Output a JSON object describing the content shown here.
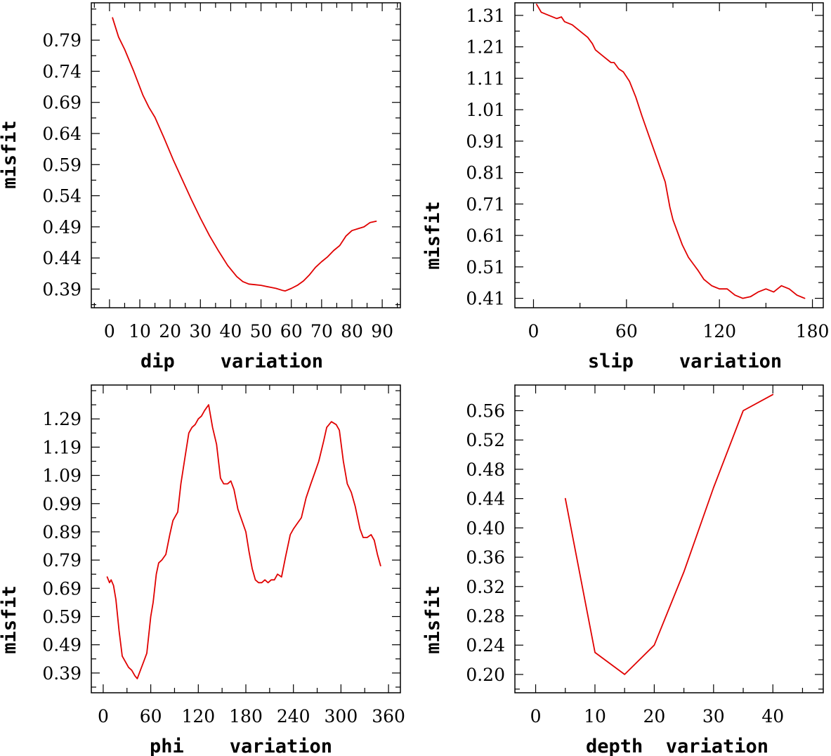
{
  "chart_data": [
    {
      "id": "dip",
      "type": "line",
      "title": "",
      "xlabel": "dip    variation",
      "ylabel": "misfit",
      "xlim": [
        -6,
        96
      ],
      "ylim": [
        0.36,
        0.85
      ],
      "x_ticks": [
        0,
        10,
        20,
        30,
        40,
        50,
        60,
        70,
        80,
        90
      ],
      "x_tick_labels": [
        "0",
        "10",
        "20",
        "30",
        "40",
        "50",
        "60",
        "70",
        "80",
        "90"
      ],
      "y_ticks": [
        0.39,
        0.44,
        0.49,
        0.54,
        0.59,
        0.64,
        0.69,
        0.74,
        0.79
      ],
      "y_tick_labels": [
        "0.39",
        "0.44",
        "0.49",
        "0.54",
        "0.59",
        "0.64",
        "0.69",
        "0.74",
        "0.79"
      ],
      "grid": false,
      "color": "#e00000",
      "series": [
        {
          "x": [
            1,
            3,
            5,
            8,
            11,
            13,
            15,
            18,
            21,
            24,
            27,
            30,
            33,
            36,
            39,
            42,
            44,
            46,
            48,
            50,
            53,
            55,
            57,
            58,
            60,
            62,
            64,
            66,
            68,
            70,
            72,
            74,
            76,
            78,
            80,
            82,
            84,
            86,
            88
          ],
          "y": [
            0.826,
            0.795,
            0.775,
            0.74,
            0.702,
            0.682,
            0.666,
            0.633,
            0.598,
            0.566,
            0.534,
            0.504,
            0.476,
            0.451,
            0.428,
            0.41,
            0.402,
            0.398,
            0.397,
            0.396,
            0.393,
            0.391,
            0.388,
            0.387,
            0.391,
            0.396,
            0.403,
            0.413,
            0.425,
            0.434,
            0.442,
            0.452,
            0.46,
            0.475,
            0.484,
            0.487,
            0.49,
            0.497,
            0.499
          ]
        }
      ]
    },
    {
      "id": "slip",
      "type": "line",
      "title": "",
      "xlabel": "slip    variation",
      "ylabel": "misfit",
      "xlim": [
        -12,
        187
      ],
      "ylim": [
        0.38,
        1.35
      ],
      "x_ticks": [
        0,
        60,
        120,
        180
      ],
      "x_tick_labels": [
        "0",
        "60",
        "120",
        "180"
      ],
      "y_ticks": [
        0.41,
        0.51,
        0.61,
        0.71,
        0.81,
        0.91,
        1.01,
        1.11,
        1.21,
        1.31
      ],
      "y_tick_labels": [
        "0.41",
        "0.51",
        "0.61",
        "0.71",
        "0.81",
        "0.91",
        "1.01",
        "1.11",
        "1.21",
        "1.31"
      ],
      "grid": false,
      "color": "#e00000",
      "series": [
        {
          "x": [
            2,
            5,
            10,
            15,
            18,
            20,
            25,
            30,
            35,
            38,
            40,
            45,
            50,
            52,
            55,
            58,
            62,
            66,
            70,
            75,
            80,
            85,
            88,
            90,
            93,
            96,
            100,
            103,
            106,
            110,
            115,
            120,
            125,
            130,
            135,
            140,
            145,
            150,
            155,
            160,
            165,
            170,
            175
          ],
          "y": [
            1.345,
            1.32,
            1.31,
            1.3,
            1.305,
            1.29,
            1.28,
            1.26,
            1.24,
            1.22,
            1.2,
            1.18,
            1.16,
            1.16,
            1.14,
            1.13,
            1.1,
            1.05,
            0.99,
            0.92,
            0.85,
            0.78,
            0.7,
            0.66,
            0.62,
            0.58,
            0.54,
            0.52,
            0.5,
            0.47,
            0.45,
            0.44,
            0.44,
            0.42,
            0.41,
            0.415,
            0.43,
            0.44,
            0.43,
            0.45,
            0.44,
            0.42,
            0.41
          ]
        }
      ]
    },
    {
      "id": "phi",
      "type": "line",
      "title": "",
      "xlabel": "phi    variation",
      "ylabel": "misfit",
      "xlim": [
        -15,
        375
      ],
      "ylim": [
        0.32,
        1.41
      ],
      "x_ticks": [
        0,
        60,
        120,
        180,
        240,
        300,
        360
      ],
      "x_tick_labels": [
        "0",
        "60",
        "120",
        "180",
        "240",
        "300",
        "360"
      ],
      "y_ticks": [
        0.39,
        0.49,
        0.59,
        0.69,
        0.79,
        0.89,
        0.99,
        1.09,
        1.19,
        1.29
      ],
      "y_tick_labels": [
        "0.39",
        "0.49",
        "0.59",
        "0.69",
        "0.79",
        "0.89",
        "0.99",
        "1.09",
        "1.19",
        "1.29"
      ],
      "grid": false,
      "color": "#e00000",
      "series": [
        {
          "x": [
            5,
            8,
            10,
            13,
            16,
            20,
            24,
            28,
            32,
            36,
            40,
            43,
            47,
            51,
            55,
            60,
            63,
            67,
            70,
            74,
            79,
            84,
            88,
            94,
            98,
            103,
            108,
            112,
            116,
            120,
            124,
            128,
            133,
            138,
            143,
            148,
            152,
            157,
            161,
            165,
            170,
            175,
            180,
            184,
            188,
            192,
            196,
            200,
            204,
            208,
            212,
            216,
            220,
            225,
            230,
            236,
            240,
            245,
            250,
            256,
            262,
            267,
            272,
            278,
            282,
            288,
            294,
            298,
            303,
            308,
            313,
            318,
            324,
            328,
            333,
            338,
            342,
            346,
            350
          ],
          "y": [
            0.73,
            0.71,
            0.72,
            0.7,
            0.65,
            0.54,
            0.45,
            0.43,
            0.41,
            0.4,
            0.38,
            0.37,
            0.4,
            0.43,
            0.46,
            0.59,
            0.64,
            0.74,
            0.78,
            0.79,
            0.81,
            0.88,
            0.93,
            0.96,
            1.06,
            1.15,
            1.24,
            1.26,
            1.27,
            1.29,
            1.3,
            1.32,
            1.34,
            1.26,
            1.2,
            1.08,
            1.06,
            1.06,
            1.07,
            1.04,
            0.97,
            0.93,
            0.89,
            0.82,
            0.76,
            0.72,
            0.71,
            0.71,
            0.72,
            0.71,
            0.72,
            0.72,
            0.74,
            0.73,
            0.8,
            0.88,
            0.9,
            0.92,
            0.94,
            1.01,
            1.06,
            1.1,
            1.14,
            1.21,
            1.26,
            1.28,
            1.27,
            1.25,
            1.14,
            1.06,
            1.03,
            0.98,
            0.9,
            0.87,
            0.87,
            0.88,
            0.86,
            0.81,
            0.77
          ]
        }
      ]
    },
    {
      "id": "depth",
      "type": "line",
      "title": "",
      "xlabel": "depth  variation",
      "ylabel": "misfit",
      "xlim": [
        -3.5,
        48.5
      ],
      "ylim": [
        0.175,
        0.595
      ],
      "x_ticks": [
        0,
        10,
        20,
        30,
        40
      ],
      "x_tick_labels": [
        "0",
        "10",
        "20",
        "30",
        "40"
      ],
      "y_ticks": [
        0.2,
        0.24,
        0.28,
        0.32,
        0.36,
        0.4,
        0.44,
        0.48,
        0.52,
        0.56
      ],
      "y_tick_labels": [
        "0.20",
        "0.24",
        "0.28",
        "0.32",
        "0.36",
        "0.40",
        "0.44",
        "0.48",
        "0.52",
        "0.56"
      ],
      "grid": false,
      "color": "#e00000",
      "series": [
        {
          "x": [
            5,
            10,
            15,
            20,
            25,
            30,
            35,
            40
          ],
          "y": [
            0.44,
            0.23,
            0.2,
            0.24,
            0.34,
            0.455,
            0.56,
            0.582
          ]
        }
      ]
    }
  ]
}
